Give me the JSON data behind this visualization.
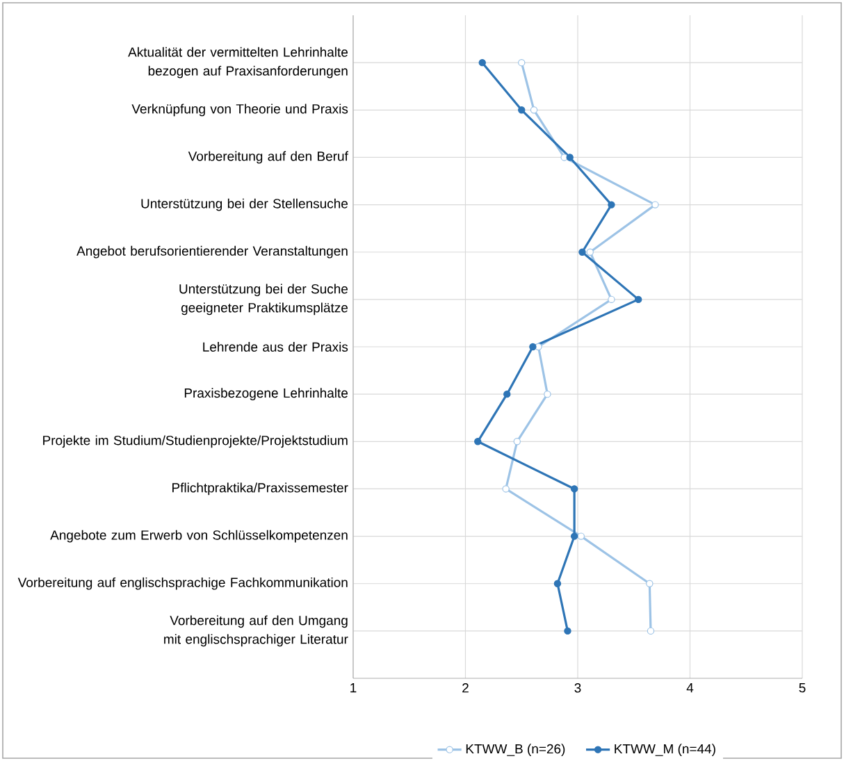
{
  "chart_data": {
    "type": "line",
    "orientation": "horizontal",
    "grid": true,
    "legend": "bottom",
    "marker": "circle",
    "categories": [
      "Aktualität der vermittelten Lehrinhalte bezogen auf Praxisanforderungen",
      "Verknüpfung von Theorie und Praxis",
      "Vorbereitung auf den Beruf",
      "Unterstützung bei der Stellensuche",
      "Angebot berufsorientierender Veranstaltungen",
      "Unterstützung bei der Suche geeigneter Praktikumsplätze",
      "Lehrende aus der Praxis",
      "Praxisbezogene Lehrinhalte",
      "Projekte im Studium/Studienprojekte/Projektstudium",
      "Pflichtpraktika/Praxissemester",
      "Angebote zum Erwerb von Schlüsselkompetenzen",
      "Vorbereitung auf englischsprachige Fachkommunikation",
      "Vorbereitung auf den Umgang mit englischsprachiger Literatur"
    ],
    "xlim": [
      1,
      5
    ],
    "xticks": [
      1,
      2,
      3,
      4,
      5
    ],
    "series": [
      {
        "name": "KTWW_B (n=26)",
        "color": "#9dc3e6",
        "values": [
          2.5,
          2.61,
          2.88,
          3.69,
          3.11,
          3.3,
          2.65,
          2.73,
          2.46,
          2.36,
          3.03,
          3.64,
          3.65
        ]
      },
      {
        "name": "KTWW_M (n=44)",
        "color": "#2e75b6",
        "values": [
          2.15,
          2.5,
          2.93,
          3.3,
          3.04,
          3.54,
          2.6,
          2.37,
          2.11,
          2.97,
          2.97,
          2.82,
          2.91
        ]
      }
    ]
  }
}
